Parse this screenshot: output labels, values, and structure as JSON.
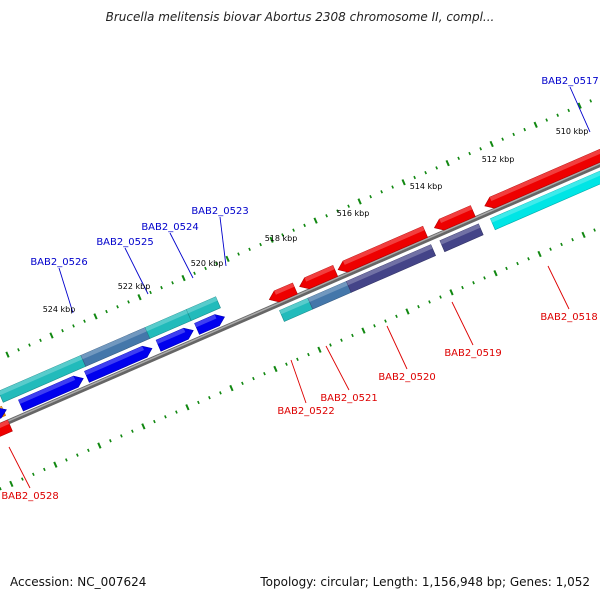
{
  "title": "Brucella melitensis biovar Abortus 2308 chromosome II, compl...",
  "footer": {
    "accession": "Accession: NC_007624",
    "summary": "Topology: circular; Length: 1,156,948 bp; Genes: 1,052"
  },
  "ticks": [
    "510 kbp",
    "512 kbp",
    "514 kbp",
    "516 kbp",
    "518 kbp",
    "520 kbp",
    "522 kbp",
    "524 kbp"
  ],
  "genes": {
    "top": [
      "BAB2_0517",
      "BAB2_0523",
      "BAB2_0524",
      "BAB2_0525",
      "BAB2_0526"
    ],
    "bottom": [
      "BAB2_0518",
      "BAB2_0519",
      "BAB2_0520",
      "BAB2_0521",
      "BAB2_0522",
      "BAB2_0528"
    ]
  },
  "colors": {
    "forward_label": "#0000cc",
    "reverse_label": "#dd0000",
    "red": "#ee0000",
    "blue": "#0000ee",
    "cyan": "#00e5e5",
    "teal": "#22bbbb",
    "steel": "#4477aa",
    "slate": "#444488",
    "orange": "#ee8800",
    "tick": "#118811",
    "backbone": "#888888"
  }
}
